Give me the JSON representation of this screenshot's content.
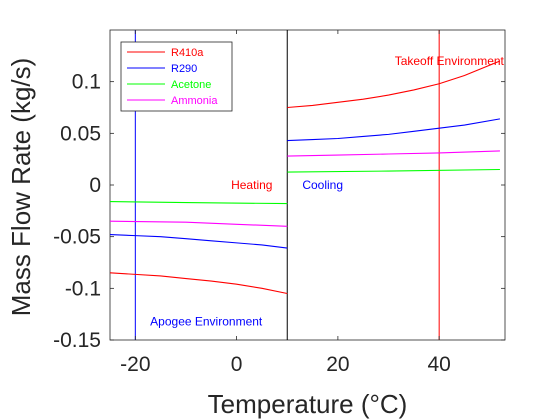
{
  "chart_data": {
    "type": "line",
    "xlabel": "Temperature (°C)",
    "ylabel": "Mass Flow Rate (kg/s)",
    "xlim": [
      -25,
      53
    ],
    "ylim": [
      -0.15,
      0.15
    ],
    "xticks": [
      -20,
      0,
      20,
      40
    ],
    "xtick_labels": [
      "-20",
      "0",
      "20",
      "40"
    ],
    "yticks": [
      -0.15,
      -0.1,
      -0.05,
      0,
      0.05,
      0.1
    ],
    "ytick_labels": [
      "-0.15",
      "-0.1",
      "-0.05",
      "0",
      "0.05",
      "0.1"
    ],
    "grid": false,
    "legend_position": "top-left",
    "series": [
      {
        "name": "R410a",
        "color": "#ff0000",
        "segments": [
          {
            "x": [
              -25,
              -20,
              -15,
              -10,
              -5,
              0,
              5,
              10
            ],
            "y": [
              -0.085,
              -0.0865,
              -0.088,
              -0.0905,
              -0.093,
              -0.096,
              -0.1,
              -0.105
            ]
          },
          {
            "x": [
              10,
              15,
              20,
              25,
              30,
              35,
              40,
              45,
              52
            ],
            "y": [
              0.075,
              0.077,
              0.08,
              0.083,
              0.087,
              0.092,
              0.098,
              0.106,
              0.12
            ]
          }
        ]
      },
      {
        "name": "R290",
        "color": "#0000ff",
        "segments": [
          {
            "x": [
              -25,
              -20,
              -15,
              -10,
              -5,
              0,
              5,
              10
            ],
            "y": [
              -0.048,
              -0.049,
              -0.05,
              -0.052,
              -0.054,
              -0.056,
              -0.058,
              -0.061
            ]
          },
          {
            "x": [
              10,
              15,
              20,
              25,
              30,
              35,
              40,
              45,
              52
            ],
            "y": [
              0.043,
              0.044,
              0.045,
              0.047,
              0.049,
              0.052,
              0.055,
              0.058,
              0.064
            ]
          }
        ]
      },
      {
        "name": "Acetone",
        "color": "#00ff00",
        "segments": [
          {
            "x": [
              -25,
              -10,
              10
            ],
            "y": [
              -0.016,
              -0.017,
              -0.018
            ]
          },
          {
            "x": [
              10,
              30,
              52
            ],
            "y": [
              0.0125,
              0.0135,
              0.015
            ]
          }
        ]
      },
      {
        "name": "Ammonia",
        "color": "#ff00ff",
        "segments": [
          {
            "x": [
              -25,
              -10,
              0,
              10
            ],
            "y": [
              -0.035,
              -0.036,
              -0.038,
              -0.04
            ]
          },
          {
            "x": [
              10,
              20,
              30,
              40,
              52
            ],
            "y": [
              0.028,
              0.029,
              0.03,
              0.031,
              0.033
            ]
          }
        ]
      }
    ],
    "vertical_lines": [
      {
        "x": -20,
        "color": "#0000ff"
      },
      {
        "x": 10,
        "color": "#000000"
      },
      {
        "x": 40,
        "color": "#ff0000"
      }
    ],
    "annotations": [
      {
        "text": "Takeoff Environment",
        "x": 42,
        "y": 0.12,
        "color": "#ff0000"
      },
      {
        "text": "Apogee Environment",
        "x": -6,
        "y": -0.132,
        "color": "#0000ff"
      },
      {
        "text": "Heating",
        "x": 3,
        "y": 0.0,
        "color": "#ff0000"
      },
      {
        "text": "Cooling",
        "x": 17,
        "y": 0.0,
        "color": "#0000ff"
      }
    ]
  }
}
